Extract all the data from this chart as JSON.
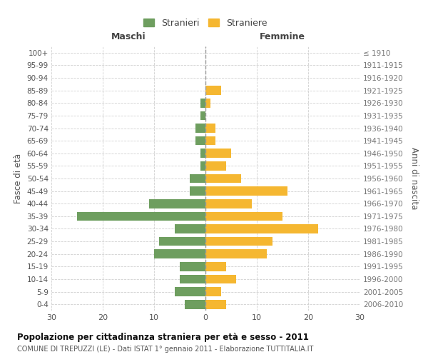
{
  "age_groups": [
    "100+",
    "95-99",
    "90-94",
    "85-89",
    "80-84",
    "75-79",
    "70-74",
    "65-69",
    "60-64",
    "55-59",
    "50-54",
    "45-49",
    "40-44",
    "35-39",
    "30-34",
    "25-29",
    "20-24",
    "15-19",
    "10-14",
    "5-9",
    "0-4"
  ],
  "birth_years": [
    "≤ 1910",
    "1911-1915",
    "1916-1920",
    "1921-1925",
    "1926-1930",
    "1931-1935",
    "1936-1940",
    "1941-1945",
    "1946-1950",
    "1951-1955",
    "1956-1960",
    "1961-1965",
    "1966-1970",
    "1971-1975",
    "1976-1980",
    "1981-1985",
    "1986-1990",
    "1991-1995",
    "1996-2000",
    "2001-2005",
    "2006-2010"
  ],
  "males": [
    0,
    0,
    0,
    0,
    1,
    1,
    2,
    2,
    1,
    1,
    3,
    3,
    11,
    25,
    6,
    9,
    10,
    5,
    5,
    6,
    4
  ],
  "females": [
    0,
    0,
    0,
    3,
    1,
    0,
    2,
    2,
    5,
    4,
    7,
    16,
    9,
    15,
    22,
    13,
    12,
    4,
    6,
    3,
    4
  ],
  "male_color": "#6e9e5f",
  "female_color": "#f5b731",
  "title": "Popolazione per cittadinanza straniera per età e sesso - 2011",
  "subtitle": "COMUNE DI TREPUZZI (LE) - Dati ISTAT 1° gennaio 2011 - Elaborazione TUTTITALIA.IT",
  "ylabel_left": "Fasce di età",
  "ylabel_right": "Anni di nascita",
  "xlabel_maschi": "Maschi",
  "xlabel_femmine": "Femmine",
  "legend_males": "Stranieri",
  "legend_females": "Straniere",
  "xlim": 30,
  "background_color": "#ffffff",
  "grid_color": "#d0d0d0"
}
